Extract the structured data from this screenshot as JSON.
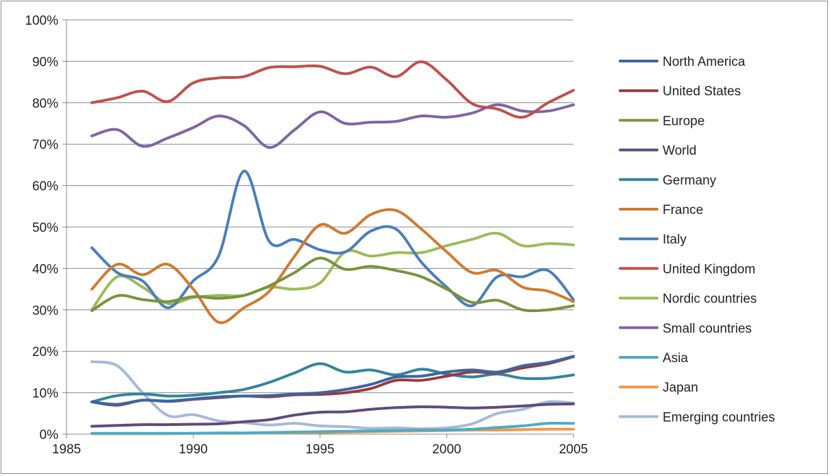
{
  "chart_data": {
    "type": "line",
    "title": "",
    "xlabel": "",
    "ylabel": "",
    "xlim": [
      1985,
      2005
    ],
    "ylim": [
      0,
      100
    ],
    "x_ticks": [
      1985,
      1990,
      1995,
      2000,
      2005
    ],
    "x_tick_labels": [
      "1985",
      "1990",
      "1995",
      "2000",
      "2005"
    ],
    "y_ticks": [
      0,
      10,
      20,
      30,
      40,
      50,
      60,
      70,
      80,
      90,
      100
    ],
    "y_tick_labels": [
      "0%",
      "10%",
      "20%",
      "30%",
      "40%",
      "50%",
      "60%",
      "70%",
      "80%",
      "90%",
      "100%"
    ],
    "grid": "horizontal",
    "legend_position": "right",
    "x": [
      1986,
      1987,
      1988,
      1989,
      1990,
      1991,
      1992,
      1993,
      1994,
      1995,
      1996,
      1997,
      1998,
      1999,
      2000,
      2001,
      2002,
      2003,
      2004,
      2005
    ],
    "series": [
      {
        "name": "North America",
        "color": "#3a66a3",
        "values": [
          7.8,
          7.2,
          8.2,
          8.0,
          8.5,
          9.0,
          9.2,
          9.3,
          9.7,
          10.0,
          10.8,
          12.0,
          13.8,
          14.0,
          15.0,
          15.5,
          15.0,
          16.5,
          17.3,
          18.8
        ]
      },
      {
        "name": "United States",
        "color": "#9a3a38",
        "values": [
          7.8,
          7.0,
          8.2,
          7.9,
          8.4,
          8.8,
          9.2,
          9.0,
          9.5,
          9.6,
          10.0,
          11.0,
          13.0,
          13.0,
          14.0,
          15.0,
          14.8,
          16.0,
          17.0,
          18.7
        ]
      },
      {
        "name": "Europe",
        "color": "#77933c",
        "values": [
          29.8,
          33.4,
          32.5,
          32.0,
          33.2,
          32.8,
          33.5,
          35.8,
          39.0,
          42.5,
          39.8,
          40.5,
          39.5,
          38.0,
          35.0,
          31.8,
          32.3,
          30.0,
          30.0,
          31.0
        ]
      },
      {
        "name": "World",
        "color": "#604a7b",
        "values": [
          1.9,
          2.1,
          2.3,
          2.3,
          2.4,
          2.5,
          3.0,
          3.5,
          4.6,
          5.3,
          5.4,
          6.0,
          6.4,
          6.6,
          6.5,
          6.3,
          6.5,
          6.8,
          7.2,
          7.3
        ]
      },
      {
        "name": "Germany",
        "color": "#31859c",
        "values": [
          7.8,
          9.3,
          9.7,
          9.2,
          9.4,
          10.0,
          10.8,
          12.5,
          14.8,
          17.0,
          15.0,
          15.5,
          14.3,
          15.7,
          14.5,
          13.8,
          14.5,
          13.5,
          13.5,
          14.3
        ]
      },
      {
        "name": "France",
        "color": "#d07a30",
        "values": [
          35.0,
          41.0,
          38.5,
          41.0,
          35.0,
          27.0,
          30.5,
          34.5,
          43.0,
          50.5,
          48.5,
          53.0,
          54.0,
          49.5,
          44.0,
          39.0,
          39.5,
          35.5,
          34.5,
          32.0
        ]
      },
      {
        "name": "Italy",
        "color": "#4a7ebb",
        "values": [
          45.0,
          39.0,
          37.0,
          30.5,
          37.0,
          43.0,
          63.5,
          46.5,
          47.0,
          44.5,
          44.0,
          49.0,
          49.5,
          41.5,
          35.5,
          31.0,
          38.0,
          38.0,
          39.5,
          32.5
        ]
      },
      {
        "name": "United Kingdom",
        "color": "#c0504d",
        "values": [
          80.0,
          81.2,
          82.8,
          80.3,
          84.8,
          86.0,
          86.3,
          88.5,
          88.7,
          88.8,
          87.0,
          88.6,
          86.3,
          89.9,
          85.5,
          79.8,
          78.5,
          76.5,
          80.0,
          83.0
        ]
      },
      {
        "name": "Nordic countries",
        "color": "#9bbb59",
        "values": [
          30.0,
          38.0,
          35.5,
          31.5,
          33.0,
          33.5,
          33.5,
          35.5,
          35.0,
          36.5,
          44.0,
          43.0,
          43.8,
          43.8,
          45.5,
          47.0,
          48.5,
          45.5,
          46.0,
          45.7
        ]
      },
      {
        "name": "Small countries",
        "color": "#8064a2",
        "values": [
          72.0,
          73.5,
          69.5,
          71.5,
          74.0,
          76.8,
          74.5,
          69.2,
          73.5,
          77.8,
          75.0,
          75.3,
          75.5,
          76.8,
          76.5,
          77.5,
          79.5,
          78.0,
          78.0,
          79.5
        ]
      },
      {
        "name": "Asia",
        "color": "#4bacc6",
        "values": [
          0.2,
          0.2,
          0.2,
          0.2,
          0.2,
          0.3,
          0.3,
          0.4,
          0.5,
          0.6,
          0.7,
          0.8,
          0.9,
          1.0,
          1.0,
          1.2,
          1.6,
          2.0,
          2.6,
          2.6
        ]
      },
      {
        "name": "Japan",
        "color": "#f79646",
        "values": [
          0.1,
          0.1,
          0.1,
          0.1,
          0.2,
          0.2,
          0.2,
          0.3,
          0.3,
          0.4,
          0.5,
          0.6,
          0.7,
          0.8,
          0.9,
          1.0,
          1.0,
          1.1,
          1.2,
          1.2
        ]
      },
      {
        "name": "Emerging countries",
        "color": "#a5b9d9",
        "values": [
          17.5,
          16.5,
          10.0,
          4.5,
          4.7,
          3.2,
          2.8,
          2.2,
          2.6,
          2.0,
          1.8,
          1.4,
          1.5,
          1.3,
          1.5,
          2.5,
          5.0,
          6.0,
          7.8,
          7.5
        ]
      }
    ]
  }
}
